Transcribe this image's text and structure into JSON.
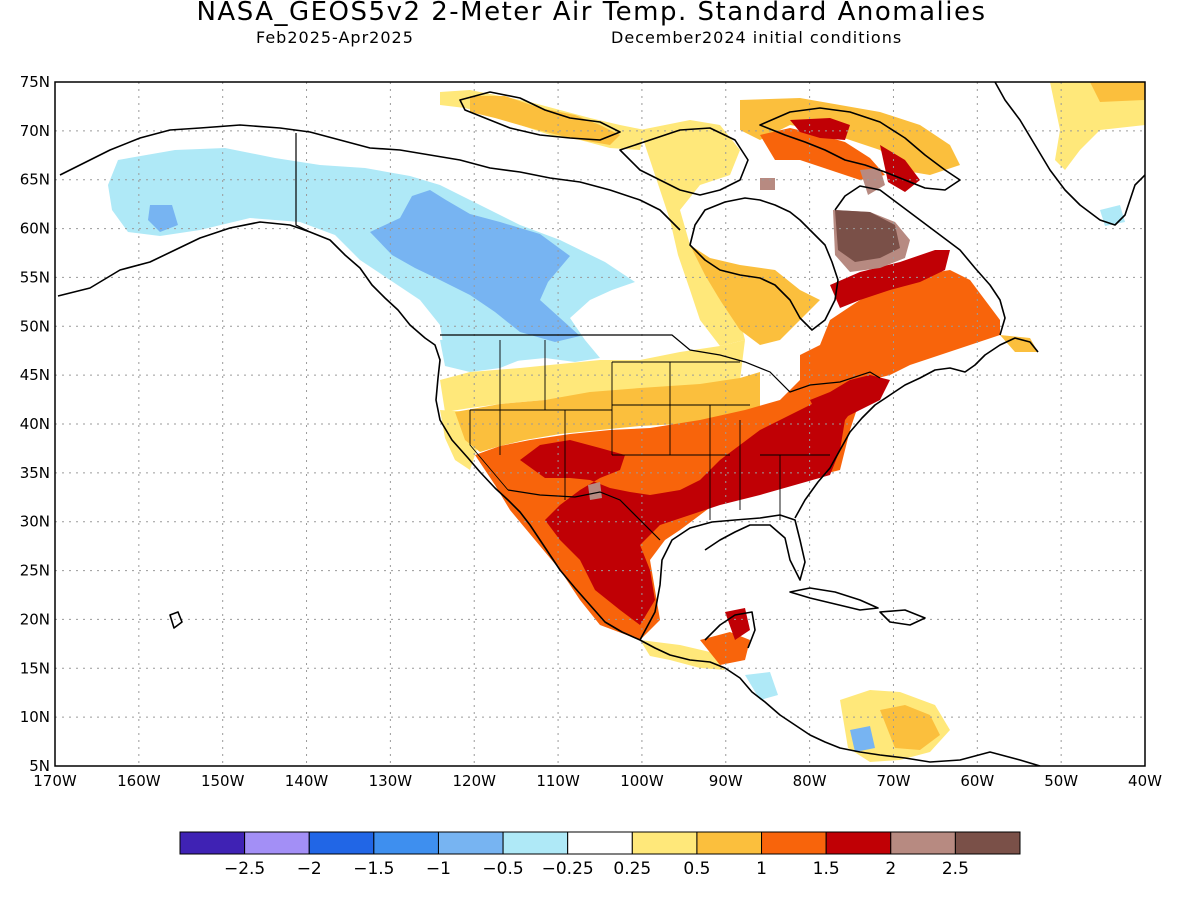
{
  "header": {
    "title": "NASA_GEOS5v2 2-Meter Air Temp. Standard Anomalies",
    "period": "Feb2025-Apr2025",
    "init": "December2024 initial conditions"
  },
  "map": {
    "lat_range": [
      5,
      75
    ],
    "lon_range": [
      -170,
      -40
    ],
    "lat_labels": [
      "75N",
      "70N",
      "65N",
      "60N",
      "55N",
      "50N",
      "45N",
      "40N",
      "35N",
      "30N",
      "25N",
      "20N",
      "15N",
      "10N",
      "5N"
    ],
    "lon_labels": [
      "170W",
      "160W",
      "150W",
      "140W",
      "130W",
      "120W",
      "110W",
      "100W",
      "90W",
      "80W",
      "70W",
      "60W",
      "50W",
      "40W"
    ]
  },
  "colorbar": {
    "colors": [
      "#3f22b4",
      "#a38ff6",
      "#2166e6",
      "#3e8fef",
      "#77b4f2",
      "#afe9f7",
      "#ffffff",
      "#ffe87a",
      "#fbbf3d",
      "#f8640b",
      "#c00005",
      "#b78a81",
      "#7a5048"
    ],
    "labels": [
      "-2.5",
      "-2",
      "-1.5",
      "-1",
      "-0.5",
      "-0.25",
      "0.25",
      "0.5",
      "1",
      "1.5",
      "2",
      "2.5"
    ]
  }
}
